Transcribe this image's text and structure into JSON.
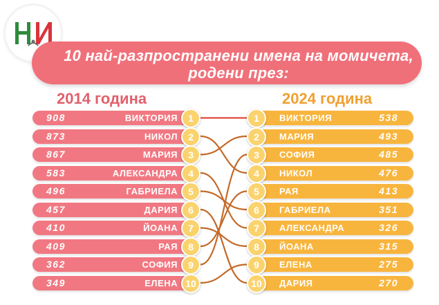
{
  "title": {
    "line1": "10 най-разпространени имена на момичета,",
    "line2": "родени през:"
  },
  "left": {
    "year_label": "2014 година",
    "rows": [
      {
        "rank": "1",
        "name": "ВИКТОРИЯ",
        "count": "908"
      },
      {
        "rank": "2",
        "name": "НИКОЛ",
        "count": "873"
      },
      {
        "rank": "3",
        "name": "МАРИЯ",
        "count": "867"
      },
      {
        "rank": "4",
        "name": "АЛЕКСАНДРА",
        "count": "583"
      },
      {
        "rank": "5",
        "name": "ГАБРИЕЛА",
        "count": "496"
      },
      {
        "rank": "6",
        "name": "ДАРИЯ",
        "count": "457"
      },
      {
        "rank": "7",
        "name": "ЙОАНА",
        "count": "410"
      },
      {
        "rank": "8",
        "name": "РАЯ",
        "count": "409"
      },
      {
        "rank": "9",
        "name": "СОФИЯ",
        "count": "362"
      },
      {
        "rank": "10",
        "name": "ЕЛЕНА",
        "count": "349"
      }
    ]
  },
  "right": {
    "year_label": "2024 година",
    "rows": [
      {
        "rank": "1",
        "name": "ВИКТОРИЯ",
        "count": "538"
      },
      {
        "rank": "2",
        "name": "МАРИЯ",
        "count": "493"
      },
      {
        "rank": "3",
        "name": "СОФИЯ",
        "count": "485"
      },
      {
        "rank": "4",
        "name": "НИКОЛ",
        "count": "476"
      },
      {
        "rank": "5",
        "name": "РАЯ",
        "count": "413"
      },
      {
        "rank": "6",
        "name": "ГАБРИЕЛА",
        "count": "351"
      },
      {
        "rank": "7",
        "name": "АЛЕКСАНДРА",
        "count": "326"
      },
      {
        "rank": "8",
        "name": "ЙОАНА",
        "count": "315"
      },
      {
        "rank": "9",
        "name": "ЕЛЕНА",
        "count": "275"
      },
      {
        "rank": "10",
        "name": "ДАРИЯ",
        "count": "270"
      }
    ]
  },
  "links": [
    {
      "from": 1,
      "to": 1
    },
    {
      "from": 2,
      "to": 4
    },
    {
      "from": 3,
      "to": 2
    },
    {
      "from": 4,
      "to": 7
    },
    {
      "from": 5,
      "to": 6
    },
    {
      "from": 6,
      "to": 10
    },
    {
      "from": 7,
      "to": 8
    },
    {
      "from": 8,
      "to": 5
    },
    {
      "from": 9,
      "to": 3
    },
    {
      "from": 10,
      "to": 9
    }
  ],
  "colors": {
    "left_bar": "#f17882",
    "right_bar": "#f8b53e",
    "circle": "#fbd36e",
    "banner": "#f0707a",
    "link_dark": "#c46a2a",
    "link_red": "#e0483c",
    "logo_green": "#2e8b3e",
    "logo_red": "#d9343c"
  },
  "logo": {
    "icon": "logo-mark-icon"
  }
}
